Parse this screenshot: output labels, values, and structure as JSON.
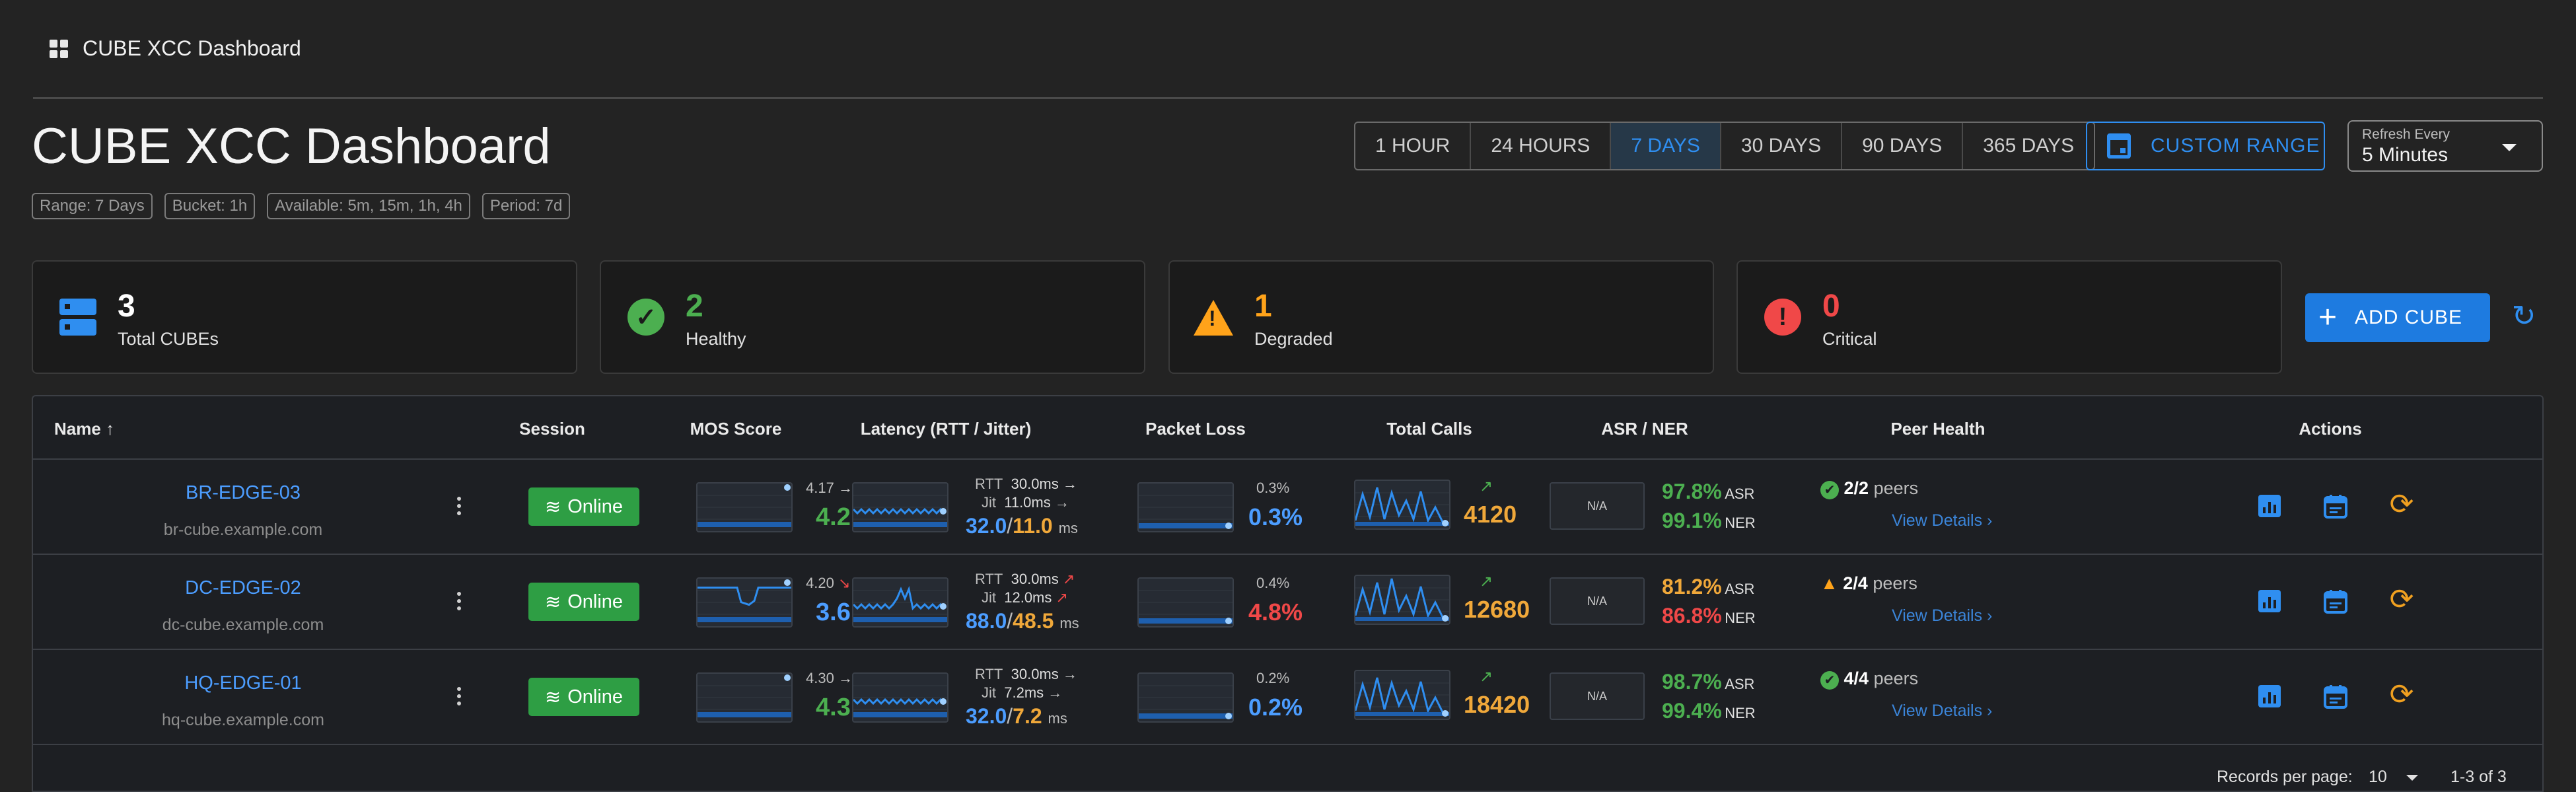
{
  "breadcrumb": {
    "label": "CUBE XCC Dashboard",
    "icon": "dashboard-icon"
  },
  "page": {
    "title": "CUBE XCC Dashboard"
  },
  "chips": [
    "Range: 7 Days",
    "Bucket: 1h",
    "Available: 5m, 15m, 1h, 4h",
    "Period: 7d"
  ],
  "range_buttons": [
    "1 HOUR",
    "24 HOURS",
    "7 DAYS",
    "30 DAYS",
    "90 DAYS",
    "365 DAYS"
  ],
  "active_range": "7 DAYS",
  "custom_range_label": "CUSTOM RANGE",
  "refresh": {
    "label": "Refresh Every",
    "value": "5 Minutes"
  },
  "stats": [
    {
      "value": "3",
      "label": "Total CUBEs",
      "icon": "server-icon",
      "color": "#ffffff"
    },
    {
      "value": "2",
      "label": "Healthy",
      "icon": "check-circle-icon",
      "color": "#4caf50"
    },
    {
      "value": "1",
      "label": "Degraded",
      "icon": "warning-icon",
      "color": "#ffa31a"
    },
    {
      "value": "0",
      "label": "Critical",
      "icon": "error-icon",
      "color": "#f04848"
    }
  ],
  "add_button": "ADD CUBE",
  "table": {
    "headers": [
      "Name",
      "Session",
      "MOS Score",
      "Latency (RTT / Jitter)",
      "Packet Loss",
      "Total Calls",
      "ASR / NER",
      "Peer Health",
      "Actions"
    ],
    "sort_indicator": "↑",
    "rows": [
      {
        "name": "BR-EDGE-03",
        "host": "br-cube.example.com",
        "session": "Online",
        "mos_small": "4.17",
        "mos_trend": "→",
        "mos": "4.2",
        "mos_level": 0.84,
        "rtt_label": "RTT",
        "rtt": "30.0ms",
        "rtt_trend": "→",
        "jit_label": "Jit",
        "jit": "11.0ms",
        "jit_trend": "→",
        "lat_main": "32.0",
        "lat_sep": "/",
        "lat_jit": "11.0",
        "lat_unit": "ms",
        "loss_small": "0.3%",
        "loss": "0.3%",
        "loss_color": "#4c9dff",
        "calls_trend": "↗",
        "calls": "4120",
        "na": "N/A",
        "asr": "97.8%",
        "asr_label": "ASR",
        "asr_color": "#4caf50",
        "ner": "99.1%",
        "ner_label": "NER",
        "ner_color": "#4caf50",
        "peer_status": "ok",
        "peers": "2/2",
        "peers_label": "peers",
        "view": "View Details ›"
      },
      {
        "name": "DC-EDGE-02",
        "host": "dc-cube.example.com",
        "session": "Online",
        "mos_small": "4.20",
        "mos_trend": "↘",
        "mos": "3.6",
        "mos_level": 0.72,
        "rtt_label": "RTT",
        "rtt": "30.0ms",
        "rtt_trend": "↗",
        "jit_label": "Jit",
        "jit": "12.0ms",
        "jit_trend": "↗",
        "lat_main": "88.0",
        "lat_sep": "/",
        "lat_jit": "48.5",
        "lat_unit": "ms",
        "loss_small": "0.4%",
        "loss": "4.8%",
        "loss_color": "#f04848",
        "calls_trend": "↗",
        "calls": "12680",
        "na": "N/A",
        "asr": "81.2%",
        "asr_label": "ASR",
        "asr_color": "#f0a83a",
        "ner": "86.8%",
        "ner_label": "NER",
        "ner_color": "#f04848",
        "peer_status": "warn",
        "peers": "2/4",
        "peers_label": "peers",
        "view": "View Details ›"
      },
      {
        "name": "HQ-EDGE-01",
        "host": "hq-cube.example.com",
        "session": "Online",
        "mos_small": "4.30",
        "mos_trend": "→",
        "mos": "4.3",
        "mos_level": 0.86,
        "rtt_label": "RTT",
        "rtt": "30.0ms",
        "rtt_trend": "→",
        "jit_label": "Jit",
        "jit": "7.2ms",
        "jit_trend": "→",
        "lat_main": "32.0",
        "lat_sep": "/",
        "lat_jit": "7.2",
        "lat_unit": "ms",
        "loss_small": "0.2%",
        "loss": "0.2%",
        "loss_color": "#4c9dff",
        "calls_trend": "↗",
        "calls": "18420",
        "na": "N/A",
        "asr": "98.7%",
        "asr_label": "ASR",
        "asr_color": "#4caf50",
        "ner": "99.4%",
        "ner_label": "NER",
        "ner_color": "#4caf50",
        "peer_status": "ok",
        "peers": "4/4",
        "peers_label": "peers",
        "view": "View Details ›"
      }
    ]
  },
  "pagination": {
    "label": "Records per page:",
    "value": "10",
    "range": "1-3 of 3"
  }
}
